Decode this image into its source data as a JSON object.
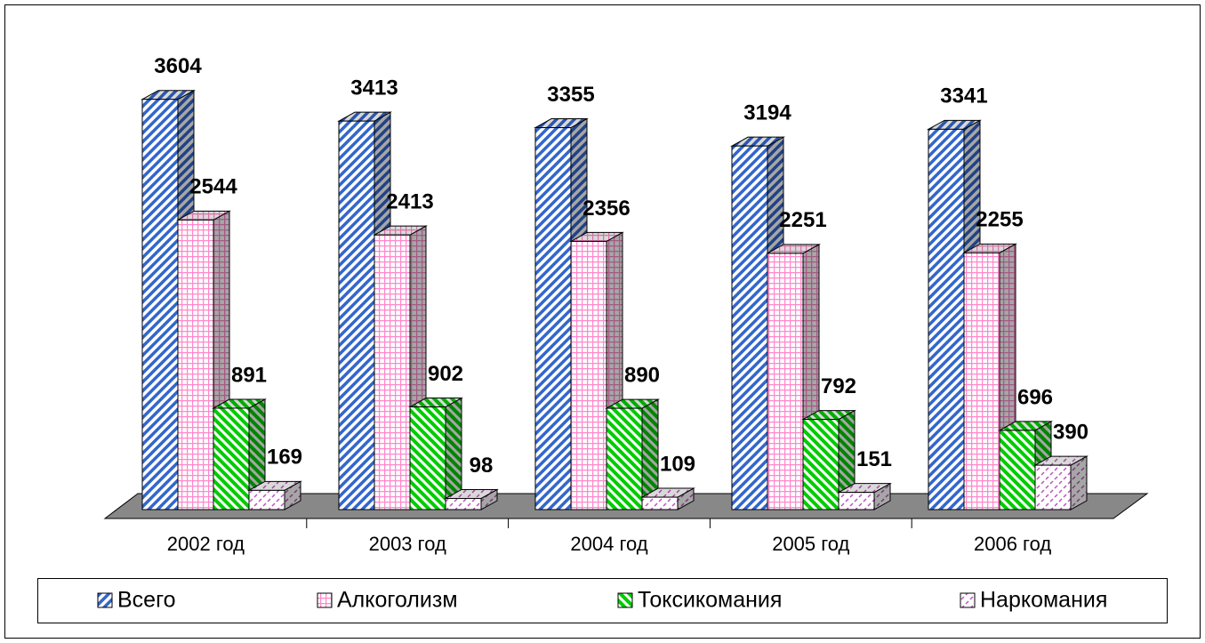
{
  "chart_data": {
    "type": "bar3d",
    "categories": [
      "2002 год",
      "2003 год",
      "2004 год",
      "2005 год",
      "2006 год"
    ],
    "series": [
      {
        "name": "Всего",
        "color": "#3366cc",
        "values": [
          3604,
          3413,
          3355,
          3194,
          3341
        ]
      },
      {
        "name": "Алкоголизм",
        "color": "#ff88cc",
        "values": [
          2544,
          2413,
          2356,
          2251,
          2255
        ]
      },
      {
        "name": "Токсикомания",
        "color": "#00cc00",
        "values": [
          891,
          902,
          890,
          792,
          696
        ]
      },
      {
        "name": "Наркомания",
        "color": "#bb55bb",
        "values": [
          169,
          98,
          109,
          151,
          390
        ]
      }
    ]
  }
}
